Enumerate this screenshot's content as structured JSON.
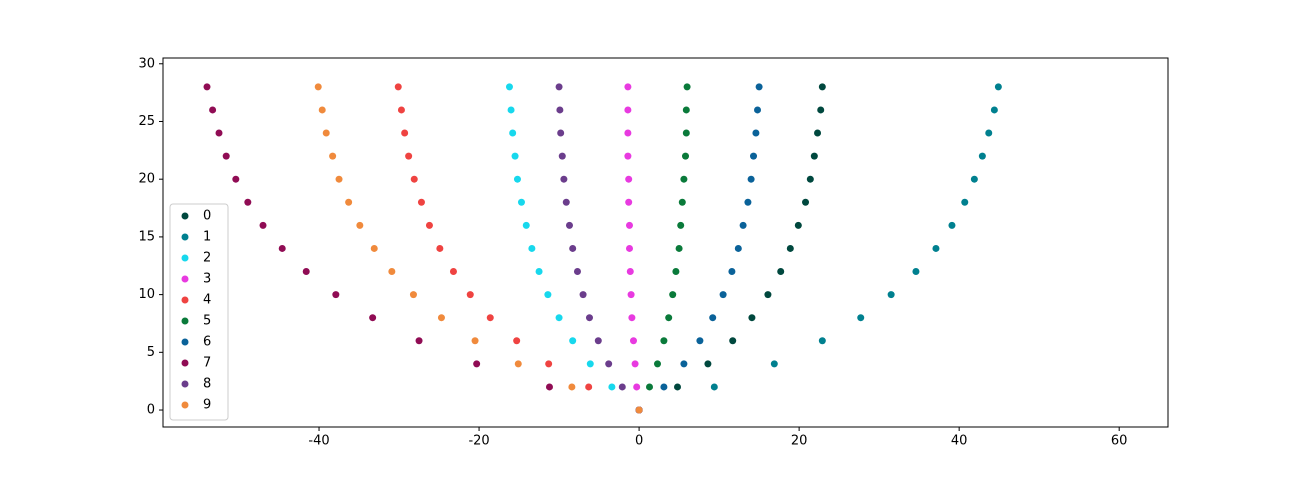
{
  "chart_data": {
    "type": "scatter",
    "xlim": [
      -59.5,
      66.1
    ],
    "ylim": [
      -1.47,
      30.5
    ],
    "xticks": [
      -40,
      -20,
      0,
      20,
      40,
      60
    ],
    "yticks": [
      0,
      5,
      10,
      15,
      20,
      25,
      30
    ],
    "grid": false,
    "legend": "lower left",
    "series": [
      {
        "name": "0",
        "color": "#00483e",
        "x": [
          0,
          4.8,
          8.6,
          11.7,
          14.1,
          16.1,
          17.7,
          18.9,
          19.9,
          20.8,
          21.4,
          21.9,
          22.3,
          22.7,
          22.9
        ],
        "y": [
          0,
          2,
          4,
          6,
          8,
          10,
          12,
          14,
          16,
          18,
          20,
          22,
          24,
          26,
          28
        ]
      },
      {
        "name": "1",
        "color": "#00808f",
        "x": [
          0,
          9.4,
          16.9,
          22.9,
          27.7,
          31.5,
          34.6,
          37.1,
          39.1,
          40.7,
          41.9,
          42.9,
          43.7,
          44.4,
          44.9
        ],
        "y": [
          0,
          2,
          4,
          6,
          8,
          10,
          12,
          14,
          16,
          18,
          20,
          22,
          24,
          26,
          28
        ]
      },
      {
        "name": "2",
        "color": "#17d8ed",
        "x": [
          0,
          -3.4,
          -6.1,
          -8.3,
          -10.0,
          -11.4,
          -12.5,
          -13.4,
          -14.1,
          -14.7,
          -15.2,
          -15.5,
          -15.8,
          -16.0,
          -16.2
        ],
        "y": [
          0,
          2,
          4,
          6,
          8,
          10,
          12,
          14,
          16,
          18,
          20,
          22,
          24,
          26,
          28
        ]
      },
      {
        "name": "3",
        "color": "#e83ae0",
        "x": [
          0,
          -0.3,
          -0.5,
          -0.7,
          -0.9,
          -1.0,
          -1.1,
          -1.2,
          -1.2,
          -1.3,
          -1.3,
          -1.4,
          -1.4,
          -1.4,
          -1.4
        ],
        "y": [
          0,
          2,
          4,
          6,
          8,
          10,
          12,
          14,
          16,
          18,
          20,
          22,
          24,
          26,
          28
        ]
      },
      {
        "name": "4",
        "color": "#ef4341",
        "x": [
          0,
          -6.3,
          -11.3,
          -15.3,
          -18.6,
          -21.1,
          -23.2,
          -24.9,
          -26.2,
          -27.2,
          -28.1,
          -28.8,
          -29.3,
          -29.7,
          -30.1
        ],
        "y": [
          0,
          2,
          4,
          6,
          8,
          10,
          12,
          14,
          16,
          18,
          20,
          22,
          24,
          26,
          28
        ]
      },
      {
        "name": "5",
        "color": "#0a7a3a",
        "x": [
          0,
          1.3,
          2.3,
          3.1,
          3.7,
          4.2,
          4.6,
          5.0,
          5.2,
          5.4,
          5.6,
          5.8,
          5.9,
          5.9,
          6.0
        ],
        "y": [
          0,
          2,
          4,
          6,
          8,
          10,
          12,
          14,
          16,
          18,
          20,
          22,
          24,
          26,
          28
        ]
      },
      {
        "name": "6",
        "color": "#0a6299",
        "x": [
          0,
          3.1,
          5.6,
          7.6,
          9.2,
          10.5,
          11.6,
          12.4,
          13.0,
          13.6,
          14.0,
          14.3,
          14.6,
          14.8,
          15.0
        ],
        "y": [
          0,
          2,
          4,
          6,
          8,
          10,
          12,
          14,
          16,
          18,
          20,
          22,
          24,
          26,
          28
        ]
      },
      {
        "name": "7",
        "color": "#900c54",
        "x": [
          0,
          -11.2,
          -20.3,
          -27.5,
          -33.3,
          -37.9,
          -41.6,
          -44.6,
          -47.0,
          -48.9,
          -50.4,
          -51.6,
          -52.5,
          -53.3,
          -54.0
        ],
        "y": [
          0,
          2,
          4,
          6,
          8,
          10,
          12,
          14,
          16,
          18,
          20,
          22,
          24,
          26,
          28
        ]
      },
      {
        "name": "8",
        "color": "#6b3d8c",
        "x": [
          0,
          -2.1,
          -3.8,
          -5.1,
          -6.2,
          -7.0,
          -7.7,
          -8.3,
          -8.7,
          -9.1,
          -9.4,
          -9.6,
          -9.8,
          -9.9,
          -10.0
        ],
        "y": [
          0,
          2,
          4,
          6,
          8,
          10,
          12,
          14,
          16,
          18,
          20,
          22,
          24,
          26,
          28
        ]
      },
      {
        "name": "9",
        "color": "#f08a3c",
        "x": [
          0,
          -8.4,
          -15.1,
          -20.5,
          -24.7,
          -28.2,
          -30.9,
          -33.1,
          -34.9,
          -36.3,
          -37.5,
          -38.3,
          -39.1,
          -39.6,
          -40.1
        ],
        "y": [
          0,
          2,
          4,
          6,
          8,
          10,
          12,
          14,
          16,
          18,
          20,
          22,
          24,
          26,
          28
        ]
      }
    ]
  }
}
